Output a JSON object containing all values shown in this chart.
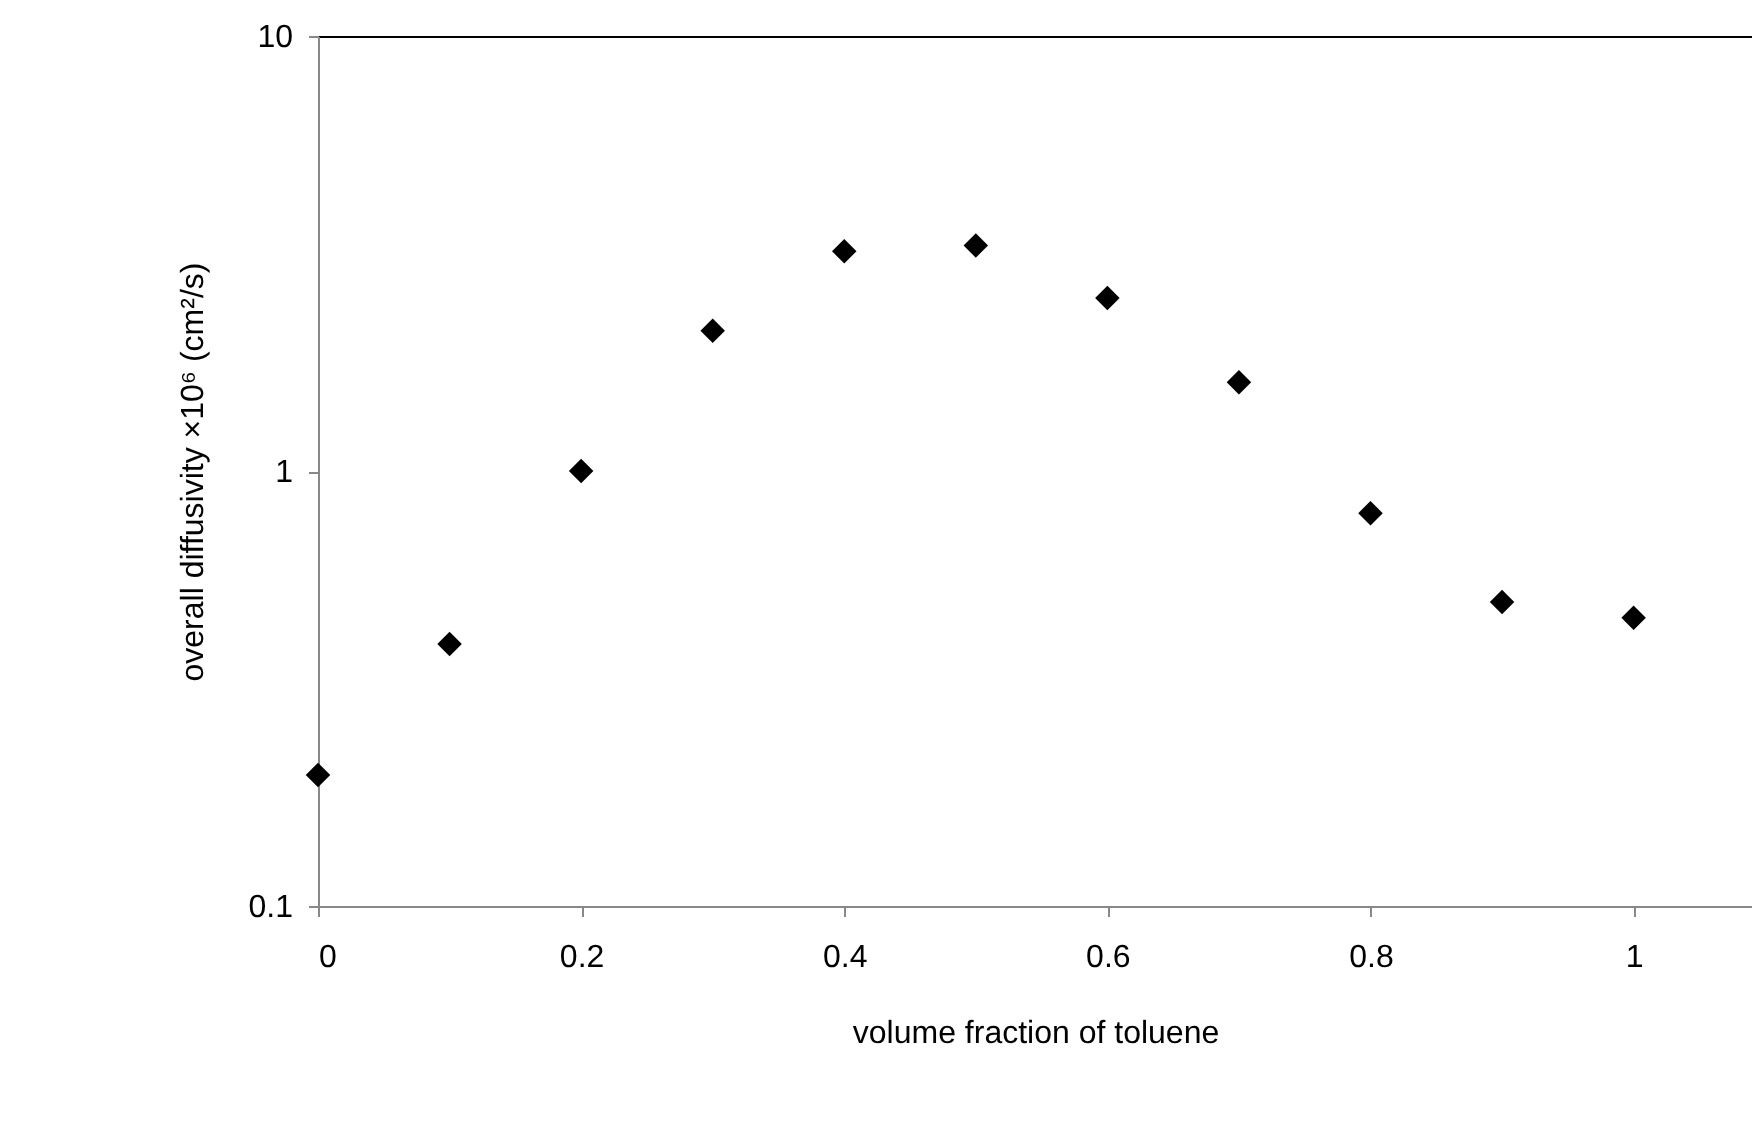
{
  "chart_data": {
    "type": "scatter",
    "xlabel": "volume fraction of toluene",
    "ylabel": "overall diffusivity ×10⁶  (cm²/s)",
    "x": [
      0,
      0.1,
      0.2,
      0.3,
      0.4,
      0.5,
      0.6,
      0.7,
      0.8,
      0.9,
      1
    ],
    "series": [
      {
        "color": "#000000",
        "values": [
          0.2,
          0.4,
          1.0,
          2.1,
          3.2,
          3.3,
          2.5,
          1.6,
          0.8,
          0.5,
          0.46
        ]
      }
    ],
    "xlim": [
      0,
      1.09
    ],
    "xticks": [
      0,
      0.2,
      0.4,
      0.6,
      0.8,
      1
    ],
    "ylim": [
      0.1,
      10
    ],
    "yticks": [
      0.1,
      1,
      10
    ],
    "log": "y",
    "marker": "diamond",
    "grid": false
  }
}
